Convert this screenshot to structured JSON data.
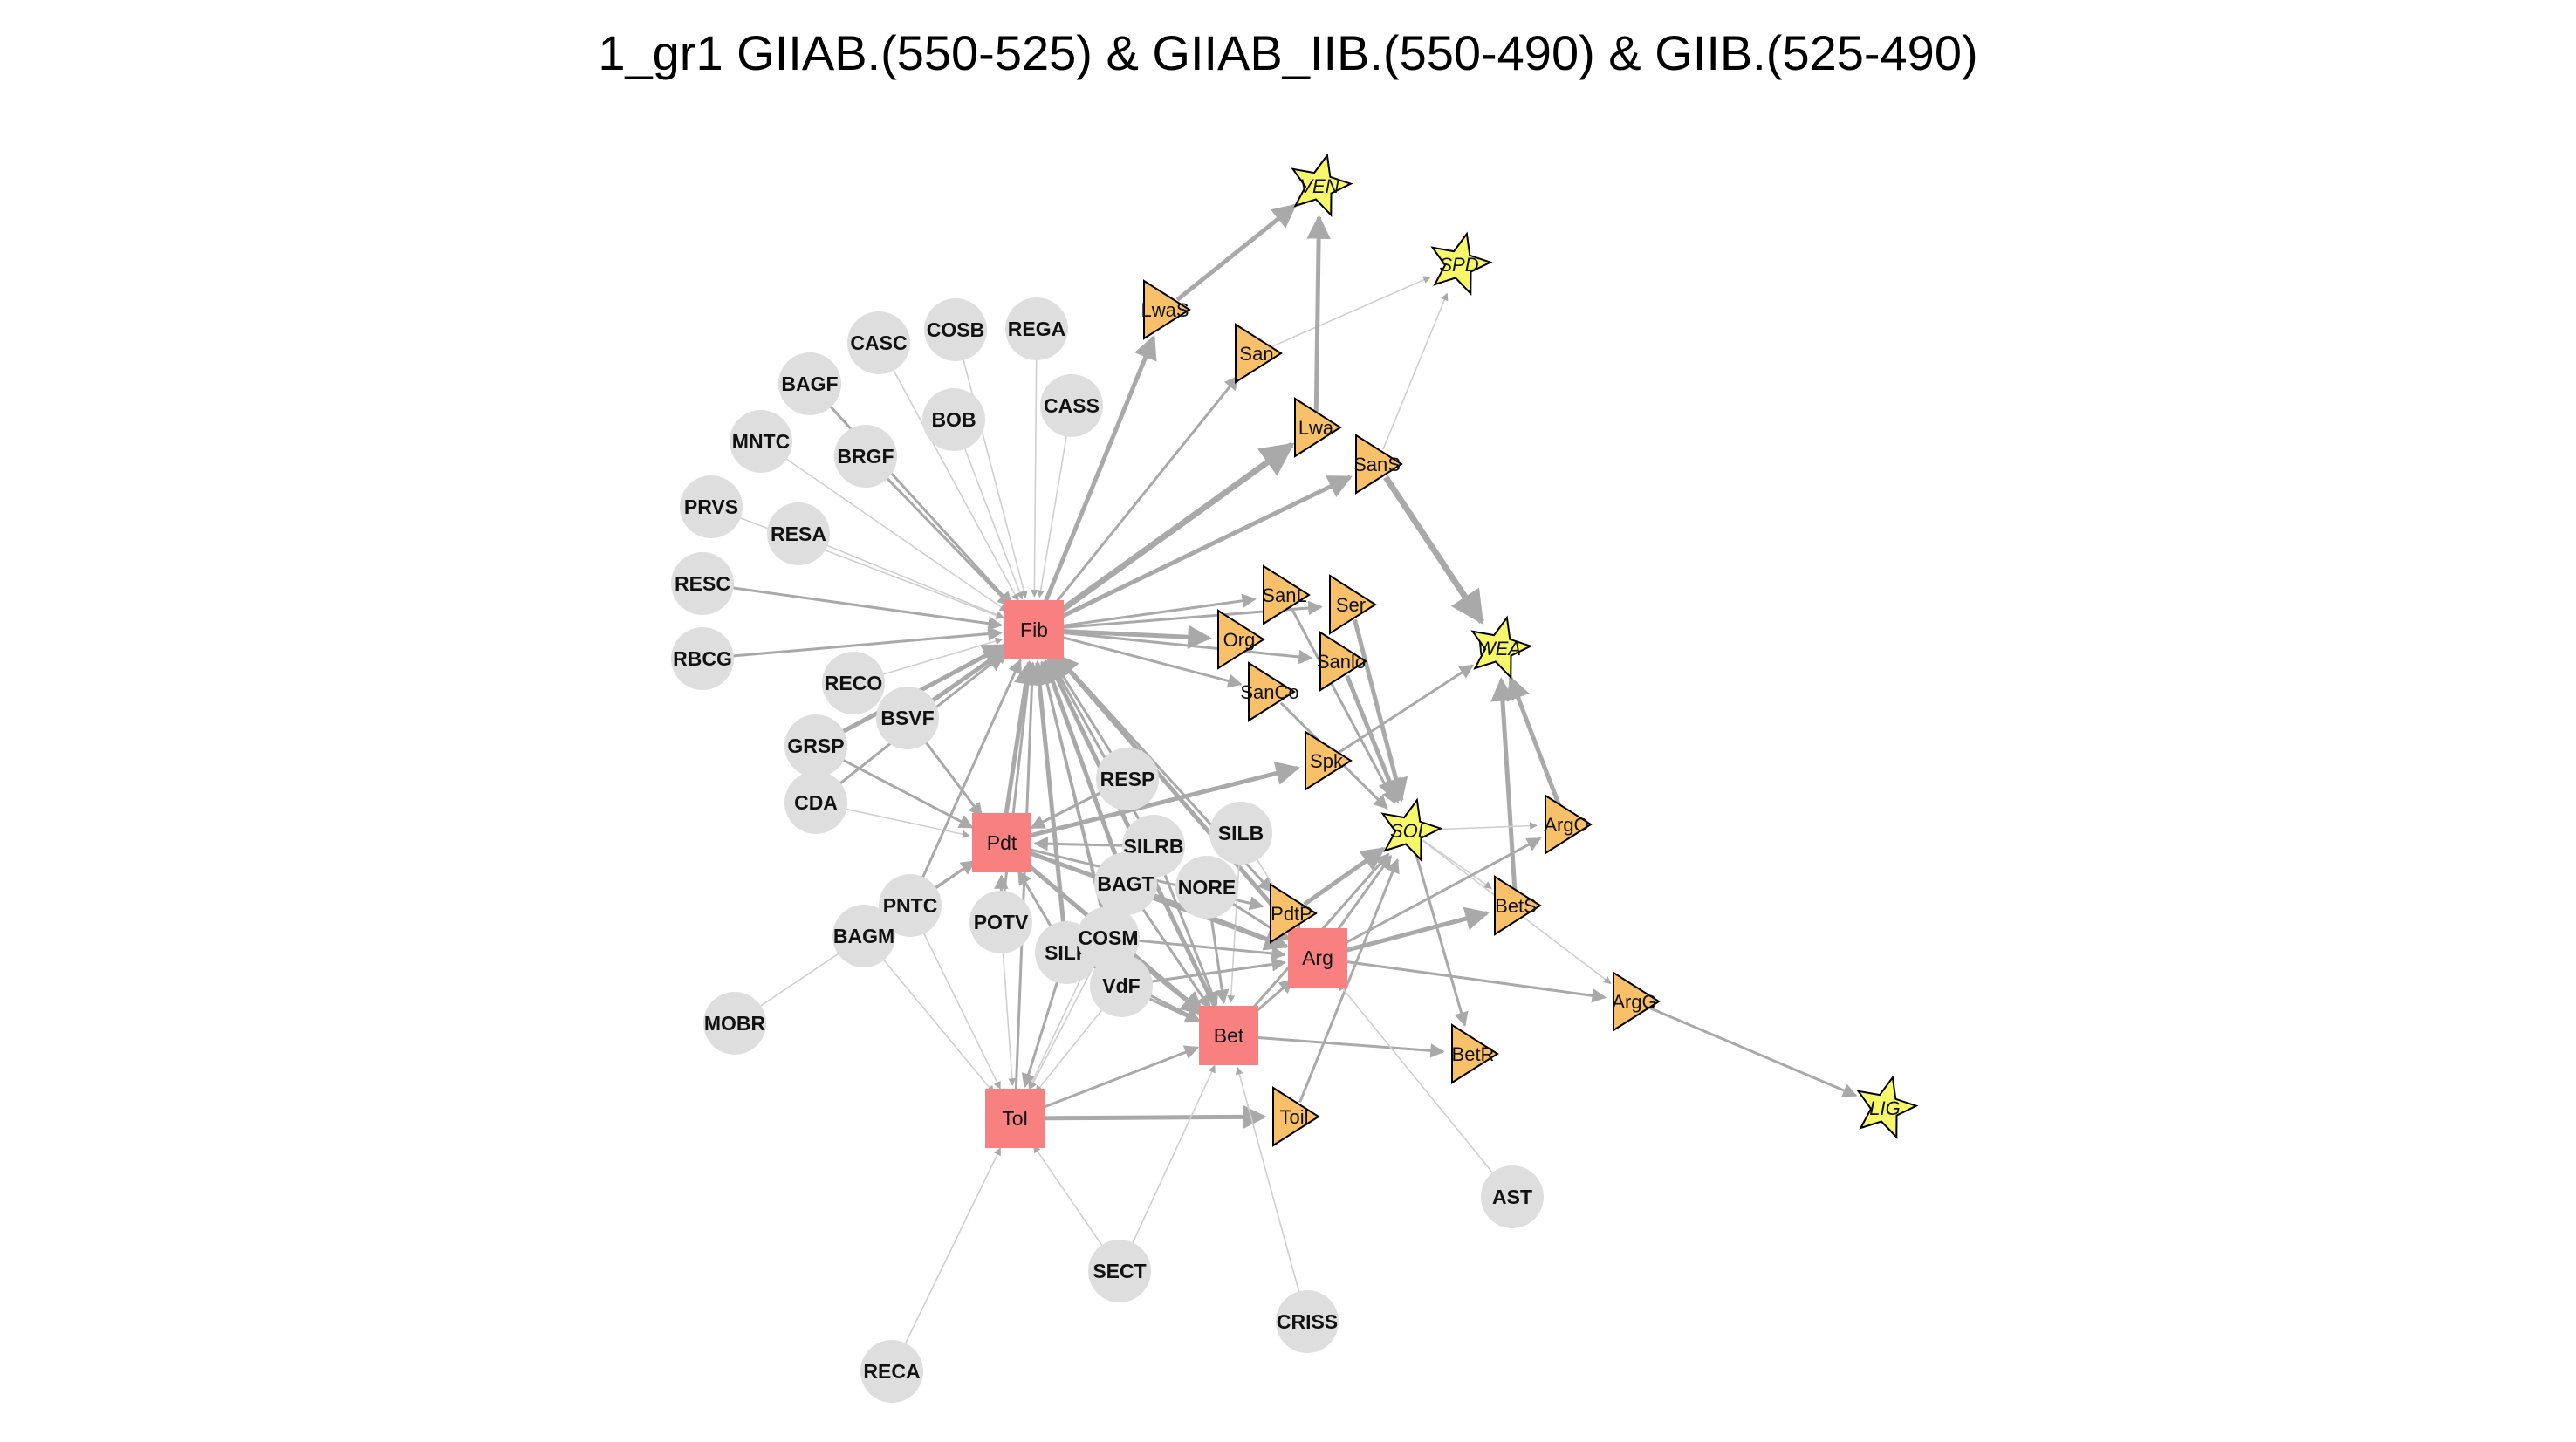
{
  "title": "1_gr1 GIIAB.(550-525) & GIIAB_IIB.(550-490) & GIIB.(525-490)",
  "colors": {
    "circle": "#dedede",
    "square": "#f88080",
    "triangle": "#f9c06a",
    "star": "#f7f76a",
    "edge": "#a9a9a9",
    "edge_light": "#cfcfcf"
  },
  "nodes": [
    {
      "id": "Fib",
      "shape": "square",
      "label": "Fib"
    },
    {
      "id": "Pdt",
      "shape": "square",
      "label": "Pdt"
    },
    {
      "id": "Arg",
      "shape": "square",
      "label": "Arg"
    },
    {
      "id": "Bet",
      "shape": "square",
      "label": "Bet"
    },
    {
      "id": "Tol",
      "shape": "square",
      "label": "Tol"
    },
    {
      "id": "CASC",
      "shape": "circle",
      "label": "CASC"
    },
    {
      "id": "COSB",
      "shape": "circle",
      "label": "COSB"
    },
    {
      "id": "REGA",
      "shape": "circle",
      "label": "REGA"
    },
    {
      "id": "BAGF",
      "shape": "circle",
      "label": "BAGF"
    },
    {
      "id": "BOB",
      "shape": "circle",
      "label": "BOB"
    },
    {
      "id": "CASS",
      "shape": "circle",
      "label": "CASS"
    },
    {
      "id": "MNTC",
      "shape": "circle",
      "label": "MNTC"
    },
    {
      "id": "BRGF",
      "shape": "circle",
      "label": "BRGF"
    },
    {
      "id": "PRVS",
      "shape": "circle",
      "label": "PRVS"
    },
    {
      "id": "RESA",
      "shape": "circle",
      "label": "RESA"
    },
    {
      "id": "RESC",
      "shape": "circle",
      "label": "RESC"
    },
    {
      "id": "RBCG",
      "shape": "circle",
      "label": "RBCG"
    },
    {
      "id": "RECO",
      "shape": "circle",
      "label": "RECO"
    },
    {
      "id": "BSVF",
      "shape": "circle",
      "label": "BSVF"
    },
    {
      "id": "GRSP",
      "shape": "circle",
      "label": "GRSP"
    },
    {
      "id": "CDA",
      "shape": "circle",
      "label": "CDA"
    },
    {
      "id": "RESP",
      "shape": "circle",
      "label": "RESP"
    },
    {
      "id": "SILB",
      "shape": "circle",
      "label": "SILB"
    },
    {
      "id": "SILRB",
      "shape": "circle",
      "label": "SILRB"
    },
    {
      "id": "BAGT",
      "shape": "circle",
      "label": "BAGT"
    },
    {
      "id": "NORE",
      "shape": "circle",
      "label": "NORE"
    },
    {
      "id": "PNTC",
      "shape": "circle",
      "label": "PNTC"
    },
    {
      "id": "POTV",
      "shape": "circle",
      "label": "POTV"
    },
    {
      "id": "BAGM",
      "shape": "circle",
      "label": "BAGM"
    },
    {
      "id": "SILF",
      "shape": "circle",
      "label": "SILF"
    },
    {
      "id": "COSM",
      "shape": "circle",
      "label": "COSM"
    },
    {
      "id": "VdF",
      "shape": "circle",
      "label": "VdF"
    },
    {
      "id": "MOBR",
      "shape": "circle",
      "label": "MOBR"
    },
    {
      "id": "AST",
      "shape": "circle",
      "label": "AST"
    },
    {
      "id": "SECT",
      "shape": "circle",
      "label": "SECT"
    },
    {
      "id": "CRISS",
      "shape": "circle",
      "label": "CRISS"
    },
    {
      "id": "RECA",
      "shape": "circle",
      "label": "RECA"
    },
    {
      "id": "LwaS",
      "shape": "triangle",
      "label": "LwaS"
    },
    {
      "id": "San",
      "shape": "triangle",
      "label": "San"
    },
    {
      "id": "Lwa",
      "shape": "triangle",
      "label": "Lwa"
    },
    {
      "id": "SanS",
      "shape": "triangle",
      "label": "SanS"
    },
    {
      "id": "SanL",
      "shape": "triangle",
      "label": "SanL"
    },
    {
      "id": "Ser",
      "shape": "triangle",
      "label": "Ser"
    },
    {
      "id": "Org",
      "shape": "triangle",
      "label": "Org"
    },
    {
      "id": "Sanlo",
      "shape": "triangle",
      "label": "Sanlo"
    },
    {
      "id": "SanCo",
      "shape": "triangle",
      "label": "SanCo"
    },
    {
      "id": "Spk",
      "shape": "triangle",
      "label": "Spk"
    },
    {
      "id": "ArgO",
      "shape": "triangle",
      "label": "ArgO"
    },
    {
      "id": "BetS",
      "shape": "triangle",
      "label": "BetS"
    },
    {
      "id": "PdtP",
      "shape": "triangle",
      "label": "PdtP"
    },
    {
      "id": "ArgG",
      "shape": "triangle",
      "label": "ArgG"
    },
    {
      "id": "BetR",
      "shape": "triangle",
      "label": "BetR"
    },
    {
      "id": "Toil",
      "shape": "triangle",
      "label": "Toil"
    },
    {
      "id": "VEN",
      "shape": "star",
      "label": "VEN"
    },
    {
      "id": "SPD",
      "shape": "star",
      "label": "SPD"
    },
    {
      "id": "WEA",
      "shape": "star",
      "label": "WEA"
    },
    {
      "id": "SOL",
      "shape": "star",
      "label": "SOL"
    },
    {
      "id": "LIG",
      "shape": "star",
      "label": "LIG"
    }
  ],
  "edges": [
    [
      "CASC",
      "Fib",
      1
    ],
    [
      "COSB",
      "Fib",
      1
    ],
    [
      "REGA",
      "Fib",
      1
    ],
    [
      "BAGF",
      "Fib",
      2
    ],
    [
      "BOB",
      "Fib",
      1
    ],
    [
      "CASS",
      "Fib",
      1
    ],
    [
      "MNTC",
      "Fib",
      1
    ],
    [
      "BRGF",
      "Fib",
      2
    ],
    [
      "PRVS",
      "Fib",
      1
    ],
    [
      "RESA",
      "Fib",
      1
    ],
    [
      "RESC",
      "Fib",
      2
    ],
    [
      "RBCG",
      "Fib",
      2
    ],
    [
      "RECO",
      "Fib",
      1
    ],
    [
      "BSVF",
      "Fib",
      3
    ],
    [
      "GRSP",
      "Fib",
      3
    ],
    [
      "CDA",
      "Fib",
      2
    ],
    [
      "RESP",
      "Fib",
      2
    ],
    [
      "SILRB",
      "Fib",
      2
    ],
    [
      "BAGT",
      "Fib",
      3
    ],
    [
      "SILF",
      "Fib",
      3
    ],
    [
      "POTV",
      "Fib",
      2
    ],
    [
      "PNTC",
      "Fib",
      2
    ],
    [
      "COSM",
      "Fib",
      2
    ],
    [
      "VdF",
      "Fib",
      2
    ],
    [
      "Pdt",
      "Fib",
      3
    ],
    [
      "Bet",
      "Fib",
      3
    ],
    [
      "Arg",
      "Fib",
      3
    ],
    [
      "Tol",
      "Fib",
      2
    ],
    [
      "Fib",
      "LwaS",
      3
    ],
    [
      "Fib",
      "San",
      2
    ],
    [
      "Fib",
      "Lwa",
      4
    ],
    [
      "Fib",
      "SanS",
      3
    ],
    [
      "Fib",
      "SanL",
      2
    ],
    [
      "Fib",
      "Ser",
      2
    ],
    [
      "Fib",
      "Org",
      3
    ],
    [
      "Fib",
      "Sanlo",
      2
    ],
    [
      "Fib",
      "SanCo",
      2
    ],
    [
      "Fib",
      "PdtP",
      2
    ],
    [
      "LwaS",
      "VEN",
      3
    ],
    [
      "San",
      "SPD",
      1
    ],
    [
      "Lwa",
      "VEN",
      3
    ],
    [
      "SanS",
      "SPD",
      1
    ],
    [
      "SanS",
      "WEA",
      4
    ],
    [
      "SanL",
      "SOL",
      2
    ],
    [
      "Ser",
      "SOL",
      3
    ],
    [
      "Sanlo",
      "SOL",
      3
    ],
    [
      "SanCo",
      "SOL",
      2
    ],
    [
      "Spk",
      "WEA",
      2
    ],
    [
      "ArgO",
      "WEA",
      3
    ],
    [
      "BetS",
      "WEA",
      3
    ],
    [
      "PdtP",
      "SOL",
      3
    ],
    [
      "Arg",
      "SOL",
      2
    ],
    [
      "Bet",
      "SOL",
      2
    ],
    [
      "Toil",
      "SOL",
      2
    ],
    [
      "SOL",
      "ArgO",
      1
    ],
    [
      "SOL",
      "BetS",
      1
    ],
    [
      "SOL",
      "BetR",
      2
    ],
    [
      "ArgG",
      "LIG",
      2
    ],
    [
      "SOL",
      "ArgG",
      1
    ],
    [
      "Pdt",
      "Spk",
      3
    ],
    [
      "Pdt",
      "Arg",
      3
    ],
    [
      "Pdt",
      "Bet",
      3
    ],
    [
      "Pdt",
      "PdtP",
      2
    ],
    [
      "Arg",
      "BetS",
      3
    ],
    [
      "Arg",
      "ArgG",
      2
    ],
    [
      "Arg",
      "ArgO",
      2
    ],
    [
      "Bet",
      "BetR",
      2
    ],
    [
      "Bet",
      "Arg",
      2
    ],
    [
      "Tol",
      "Toil",
      3
    ],
    [
      "Tol",
      "Bet",
      2
    ],
    [
      "BSVF",
      "Pdt",
      2
    ],
    [
      "GRSP",
      "Pdt",
      2
    ],
    [
      "CDA",
      "Pdt",
      1
    ],
    [
      "BAGM",
      "Pdt",
      2
    ],
    [
      "PNTC",
      "Pdt",
      2
    ],
    [
      "SILF",
      "Pdt",
      2
    ],
    [
      "POTV",
      "Pdt",
      2
    ],
    [
      "SILRB",
      "Pdt",
      2
    ],
    [
      "RESP",
      "Pdt",
      2
    ],
    [
      "BAGT",
      "Bet",
      2
    ],
    [
      "NORE",
      "Bet",
      2
    ],
    [
      "SILB",
      "Bet",
      1
    ],
    [
      "COSM",
      "Bet",
      2
    ],
    [
      "VdF",
      "Bet",
      2
    ],
    [
      "SILRB",
      "Bet",
      2
    ],
    [
      "SILF",
      "Bet",
      2
    ],
    [
      "CRISS",
      "Bet",
      1
    ],
    [
      "SECT",
      "Bet",
      1
    ],
    [
      "BAGT",
      "Arg",
      2
    ],
    [
      "NORE",
      "Arg",
      2
    ],
    [
      "VdF",
      "Arg",
      2
    ],
    [
      "COSM",
      "Arg",
      2
    ],
    [
      "AST",
      "Arg",
      1
    ],
    [
      "SILB",
      "Arg",
      1
    ],
    [
      "PNTC",
      "Tol",
      1
    ],
    [
      "SILF",
      "Tol",
      2
    ],
    [
      "POTV",
      "Tol",
      1
    ],
    [
      "BAGM",
      "Tol",
      1
    ],
    [
      "COSM",
      "Tol",
      1
    ],
    [
      "VdF",
      "Tol",
      1
    ],
    [
      "SECT",
      "Tol",
      1
    ],
    [
      "RECA",
      "Tol",
      1
    ],
    [
      "BAGT",
      "Tol",
      1
    ],
    [
      "MOBR",
      "PNTC",
      1
    ],
    [
      "RESP",
      "Pdt",
      2
    ]
  ]
}
